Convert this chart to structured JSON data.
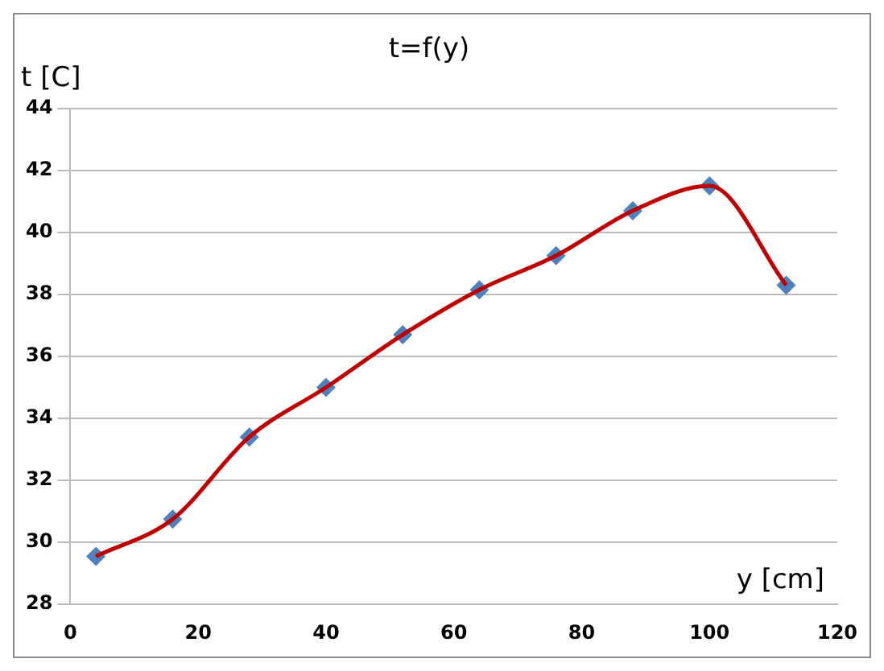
{
  "chart_data": {
    "type": "line",
    "title": "t=f(y)",
    "xlabel": "y [cm]",
    "ylabel": "t [C]",
    "x": [
      4,
      16,
      28,
      40,
      52,
      64,
      76,
      88,
      100,
      112
    ],
    "series": [
      {
        "color": "#c00000",
        "marker": "none",
        "values": [
          29.55,
          30.75,
          33.4,
          35.0,
          36.7,
          38.15,
          39.25,
          40.7,
          41.5,
          38.3
        ]
      },
      {
        "type": "scatter",
        "color": "#4f81bd",
        "marker": "diamond",
        "values": [
          29.55,
          30.75,
          33.4,
          35.0,
          36.7,
          38.15,
          39.25,
          40.7,
          41.5,
          38.3
        ]
      }
    ],
    "xlim": [
      0,
      120
    ],
    "xticks": [
      0,
      20,
      40,
      60,
      80,
      100,
      120
    ],
    "ylim": [
      28,
      44
    ],
    "yticks": [
      28,
      30,
      32,
      34,
      36,
      38,
      40,
      42,
      44
    ],
    "grid": "y"
  }
}
